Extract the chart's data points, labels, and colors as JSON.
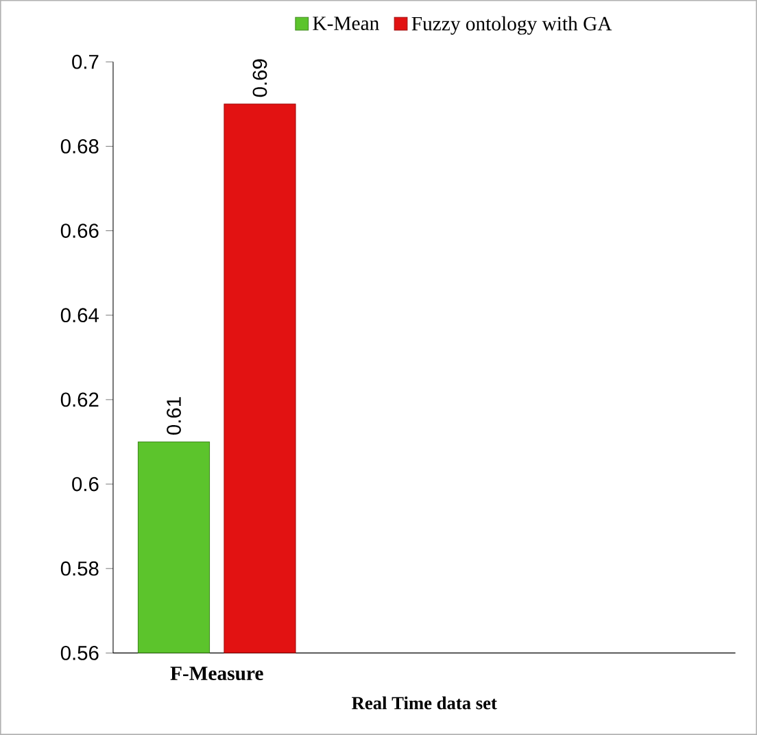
{
  "chart_data": {
    "type": "bar",
    "xlabel": "Real  Time data set",
    "categories": [
      "F-Measure",
      null,
      null
    ],
    "series": [
      {
        "name": "K-Mean",
        "color": "#5cc42c",
        "values": [
          0.61,
          null,
          null
        ]
      },
      {
        "name": "Fuzzy ontology with GA",
        "color": "#e21212",
        "values": [
          0.69,
          null,
          null
        ]
      }
    ],
    "ylim": [
      0.56,
      0.7
    ],
    "yticks": [
      0.56,
      0.58,
      0.6,
      0.62,
      0.64,
      0.66,
      0.68,
      0.7
    ],
    "data_labels": true,
    "legend": "top",
    "grid": false
  }
}
